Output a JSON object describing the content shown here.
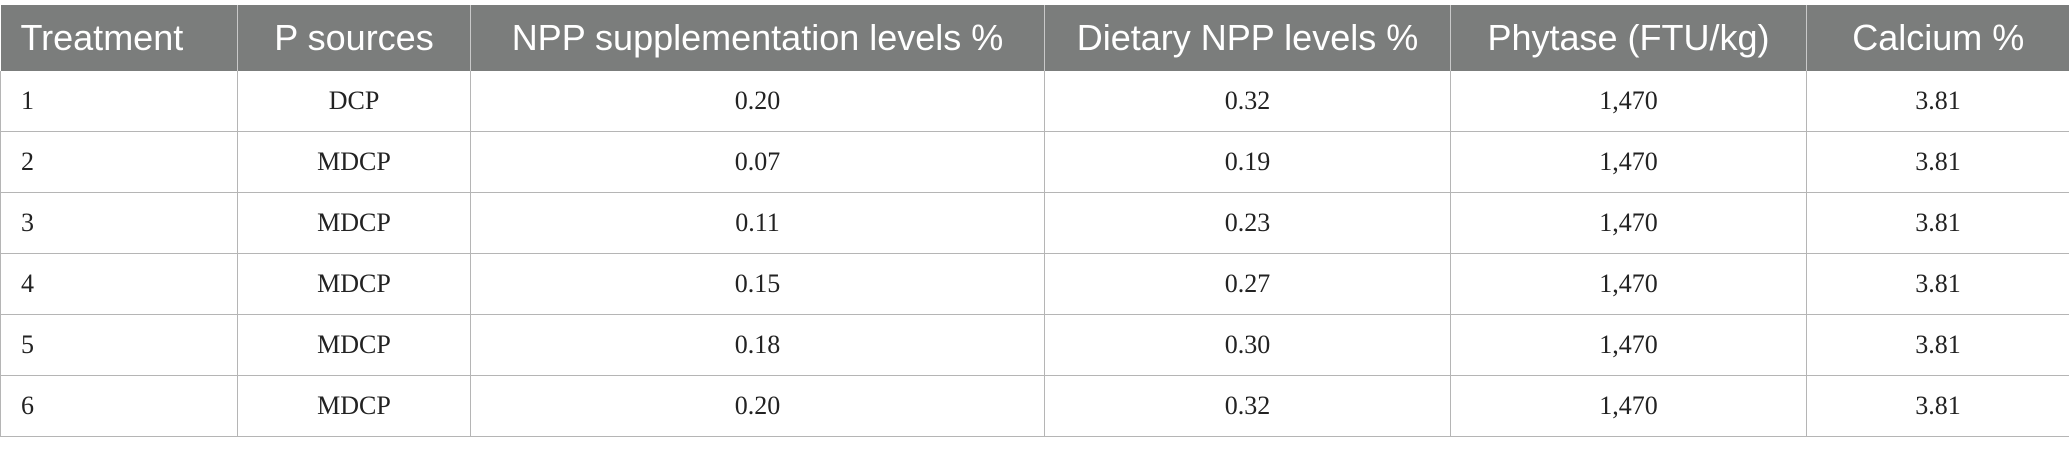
{
  "table": {
    "headers": [
      "Treatment",
      "P sources",
      "NPP supplementation levels %",
      "Dietary NPP levels %",
      "Phytase (FTU/kg)",
      "Calcium %"
    ],
    "rows": [
      [
        "1",
        "DCP",
        "0.20",
        "0.32",
        "1,470",
        "3.81"
      ],
      [
        "2",
        "MDCP",
        "0.07",
        "0.19",
        "1,470",
        "3.81"
      ],
      [
        "3",
        "MDCP",
        "0.11",
        "0.23",
        "1,470",
        "3.81"
      ],
      [
        "4",
        "MDCP",
        "0.15",
        "0.27",
        "1,470",
        "3.81"
      ],
      [
        "5",
        "MDCP",
        "0.18",
        "0.30",
        "1,470",
        "3.81"
      ],
      [
        "6",
        "MDCP",
        "0.20",
        "0.32",
        "1,470",
        "3.81"
      ]
    ]
  },
  "colors": {
    "header_bg": "#7b7d7c",
    "header_text": "#ffffff",
    "grid_line": "#b5b5b5",
    "cell_text": "#222222"
  }
}
